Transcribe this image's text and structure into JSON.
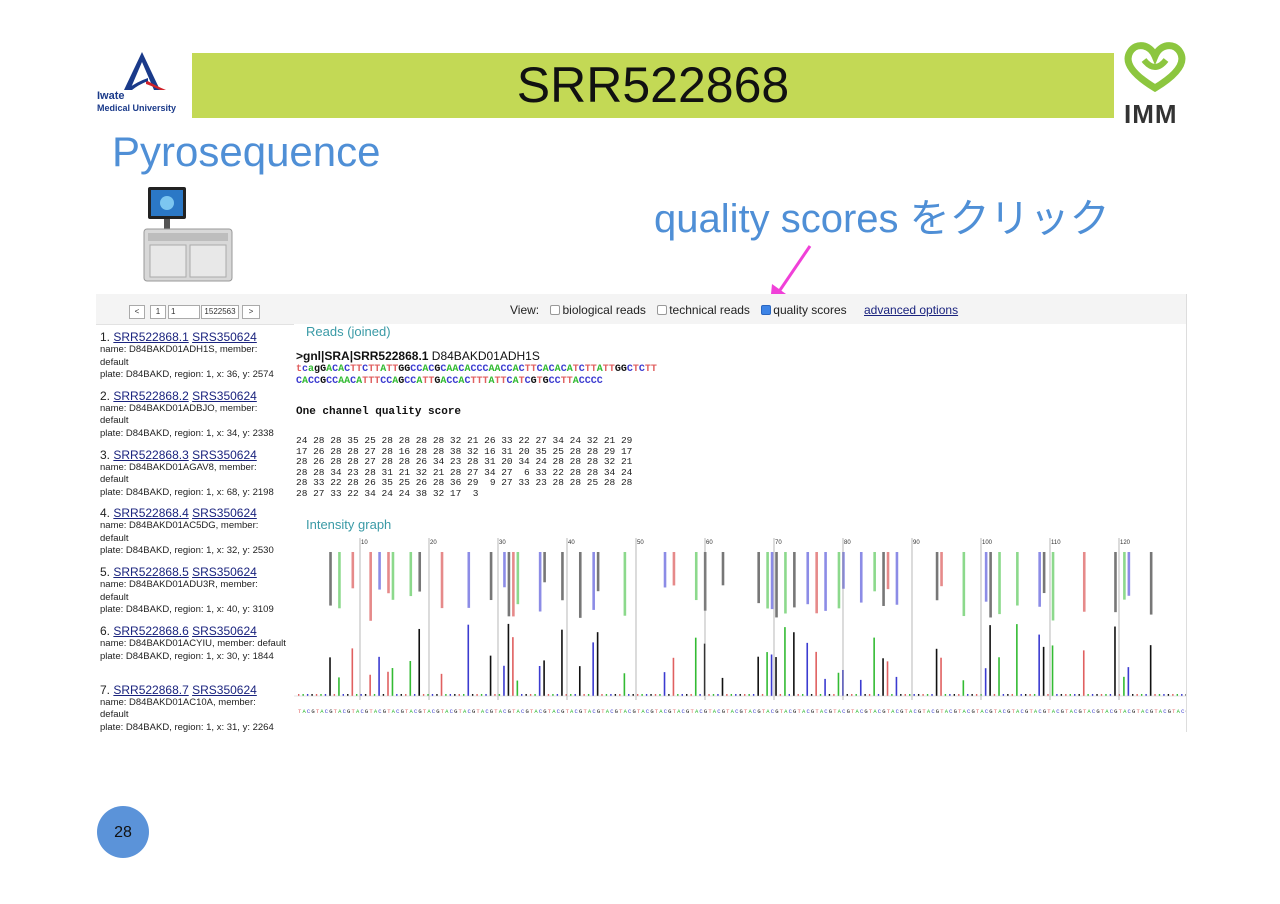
{
  "slide": {
    "title": "SRR522868",
    "subtitle": "Pyrosequence",
    "callout": "quality scores をクリック",
    "page_number": "28",
    "logo_left_line1": "Iwate",
    "logo_left_line2": "Medical University",
    "logo_right": "IMM",
    "colors": {
      "title_bar": "#c3d955",
      "accent_text": "#4f8fd6",
      "arrow": "#f040d8",
      "page_badge": "#5b93d9"
    }
  },
  "toolbar": {
    "prev": "<",
    "page": "1",
    "page_input": "1",
    "total": "1522563",
    "next": ">",
    "view_label": "View:",
    "options": [
      {
        "label": "biological reads",
        "checked": false
      },
      {
        "label": "technical reads",
        "checked": false
      },
      {
        "label": "quality scores",
        "checked": true
      }
    ],
    "advanced": "advanced options"
  },
  "reads": [
    {
      "num": "1.",
      "run": "SRR522868.1",
      "sample": "SRS350624",
      "name": "name: D84BAKD01ADH1S, member:",
      "member": "default",
      "plate": "plate: D84BAKD, region: 1, x: 36, y: 2574"
    },
    {
      "num": "2.",
      "run": "SRR522868.2",
      "sample": "SRS350624",
      "name": "name: D84BAKD01ADBJO, member:",
      "member": "default",
      "plate": "plate: D84BAKD, region: 1, x: 34, y: 2338"
    },
    {
      "num": "3.",
      "run": "SRR522868.3",
      "sample": "SRS350624",
      "name": "name: D84BAKD01AGAV8, member:",
      "member": "default",
      "plate": "plate: D84BAKD, region: 1, x: 68, y: 2198"
    },
    {
      "num": "4.",
      "run": "SRR522868.4",
      "sample": "SRS350624",
      "name": "name: D84BAKD01AC5DG, member:",
      "member": "default",
      "plate": "plate: D84BAKD, region: 1, x: 32, y: 2530"
    },
    {
      "num": "5.",
      "run": "SRR522868.5",
      "sample": "SRS350624",
      "name": "name: D84BAKD01ADU3R, member:",
      "member": "default",
      "plate": "plate: D84BAKD, region: 1, x: 40, y: 3109"
    },
    {
      "num": "6.",
      "run": "SRR522868.6",
      "sample": "SRS350624",
      "name": "name: D84BAKD01ACYIU, member: default",
      "member": "",
      "plate": "plate: D84BAKD, region: 1, x: 30, y: 1844"
    },
    {
      "num": "7.",
      "run": "SRR522868.7",
      "sample": "SRS350624",
      "name": "name: D84BAKD01AC10A, member:",
      "member": "default",
      "plate": "plate: D84BAKD, region: 1, x: 31, y: 2264"
    }
  ],
  "detail": {
    "reads_heading": "Reads (joined)",
    "header_prefix": ">gnl|SRA|",
    "header_id": "SRR522868.1",
    "header_name": "D84BAKD01ADH1S",
    "seq_line1": "tcagGACACTTCTTATTGGCCACGCAACACCCAACCACTTCACACATCTTATTGGCTCTT",
    "seq_line2": "CACCGCCAACATTTCCAGCCATTGACCACTTTATTCATCGTGCCTTACCCC",
    "quality_heading": "One channel quality score",
    "quality_rows": [
      "24 28 28 35 25 28 28 28 28 32 21 26 33 22 27 34 24 32 21 29",
      "17 26 28 28 27 28 16 28 28 38 32 16 31 20 35 25 28 28 29 17",
      "28 26 28 28 27 28 28 26 34 23 28 31 20 34 24 28 28 28 32 21",
      "28 28 34 23 28 31 21 32 21 28 27 34 27  6 33 22 28 28 34 24",
      "28 33 22 28 26 35 25 26 28 36 29  9 27 33 23 28 28 25 28 28",
      "28 27 33 22 34 24 24 38 32 17  3"
    ],
    "intensity_heading": "Intensity graph",
    "graph_ticks": [
      "10",
      "20",
      "30",
      "40",
      "50",
      "60",
      "70",
      "80",
      "90",
      "100",
      "110",
      "120"
    ],
    "flow_order": "TACG",
    "base_colors": {
      "T": "#e06060",
      "A": "#33bb33",
      "C": "#3b3bd0",
      "G": "#111111"
    },
    "upper_bar_colors": {
      "T": "#e68a8a",
      "A": "#8cd98c",
      "C": "#8c8ce6",
      "G": "#777777"
    }
  }
}
